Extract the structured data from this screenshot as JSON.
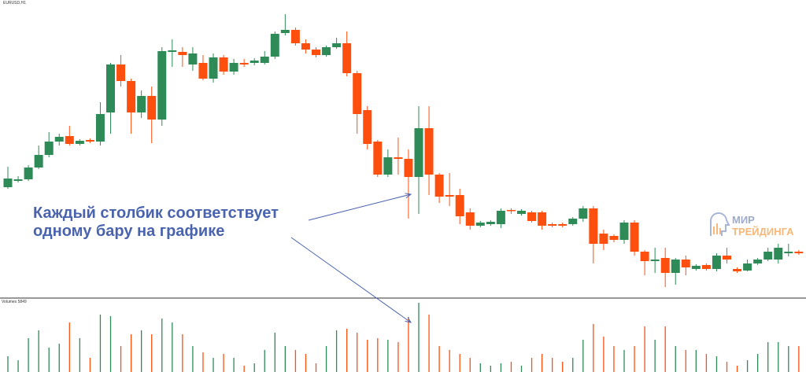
{
  "chart_data": [
    {
      "type": "candlestick",
      "title": "EURUSD,H1",
      "ylim": [
        0,
        378
      ],
      "up_color": "#2e8b57",
      "down_color": "#ff4f0f",
      "series": [
        {
          "open": [
            140,
            148,
            150,
            165,
            181,
            198,
            205,
            195,
            200,
            198,
            235,
            296,
            275,
            235,
            256,
            226,
            312,
            312,
            296,
            298,
            278,
            305,
            287,
            298,
            298,
            298,
            306,
            336,
            340,
            323,
            315,
            308,
            318,
            323,
            285,
            238,
            198,
            156,
            178,
            176,
            153,
            215,
            156,
            130,
            130,
            108,
            91,
            93,
            93,
            111,
            106,
            108,
            108,
            93,
            93,
            93,
            100,
            113,
            81,
            78,
            73,
            95,
            58,
            46,
            50,
            31,
            48,
            36,
            41,
            36,
            53,
            36,
            34,
            43,
            48,
            48,
            56,
            58
          ],
          "high": [
            166,
            154,
            168,
            193,
            210,
            208,
            218,
            201,
            202,
            248,
            298,
            308,
            278,
            263,
            268,
            318,
            328,
            318,
            318,
            308,
            310,
            308,
            303,
            303,
            304,
            313,
            338,
            360,
            343,
            328,
            318,
            320,
            330,
            338,
            288,
            243,
            200,
            188,
            203,
            188,
            243,
            243,
            158,
            158,
            138,
            113,
            97,
            98,
            113,
            113,
            112,
            110,
            110,
            95,
            95,
            102,
            116,
            116,
            86,
            80,
            98,
            98,
            60,
            63,
            63,
            50,
            53,
            42,
            43,
            56,
            63,
            38,
            48,
            50,
            63,
            68,
            68,
            60
          ],
          "low": [
            138,
            146,
            148,
            163,
            178,
            193,
            193,
            193,
            196,
            193,
            208,
            268,
            208,
            228,
            196,
            218,
            293,
            293,
            288,
            276,
            273,
            283,
            283,
            293,
            295,
            296,
            303,
            333,
            320,
            310,
            305,
            306,
            316,
            281,
            208,
            188,
            153,
            153,
            156,
            100,
            106,
            130,
            120,
            116,
            93,
            86,
            89,
            91,
            88,
            106,
            104,
            95,
            86,
            89,
            89,
            91,
            96,
            43,
            60,
            70,
            68,
            53,
            28,
            31,
            13,
            16,
            28,
            34,
            34,
            33,
            43,
            31,
            33,
            41,
            46,
            43,
            52,
            54
          ],
          "close": [
            151,
            150,
            165,
            181,
            198,
            204,
            195,
            199,
            198,
            233,
            296,
            275,
            235,
            256,
            226,
            313,
            314,
            308,
            310,
            278,
            305,
            287,
            298,
            296,
            301,
            306,
            335,
            340,
            323,
            315,
            308,
            318,
            323,
            285,
            233,
            195,
            156,
            178,
            176,
            153,
            215,
            156,
            128,
            128,
            103,
            91,
            95,
            96,
            110,
            110,
            110,
            97,
            91,
            91,
            91,
            100,
            113,
            68,
            68,
            73,
            95,
            58,
            46,
            48,
            31,
            48,
            38,
            40,
            36,
            53,
            48,
            33,
            43,
            48,
            58,
            63,
            58,
            56
          ]
        }
      ]
    },
    {
      "type": "volume",
      "title": "Volumes 5849",
      "ylim": [
        0,
        93
      ],
      "series": [
        {
          "values": [
            20,
            15,
            43,
            53,
            31,
            36,
            63,
            43,
            18,
            73,
            71,
            33,
            48,
            53,
            48,
            68,
            63,
            48,
            33,
            25,
            18,
            23,
            18,
            8,
            11,
            28,
            50,
            33,
            28,
            23,
            11,
            33,
            53,
            55,
            50,
            41,
            43,
            41,
            38,
            70,
            88,
            73,
            33,
            28,
            23,
            18,
            11,
            8,
            11,
            13,
            8,
            18,
            23,
            18,
            13,
            18,
            41,
            61,
            45,
            33,
            28,
            33,
            58,
            41,
            58,
            33,
            28,
            28,
            23,
            20,
            13,
            8,
            15,
            23,
            38,
            38,
            33,
            33
          ]
        }
      ]
    }
  ],
  "annotation": {
    "line1": "Каждый столбик соответствует",
    "line2": "одному бару на графике"
  },
  "logo": {
    "top": "МИР",
    "bottom": "ТРЕЙДИНГА"
  }
}
